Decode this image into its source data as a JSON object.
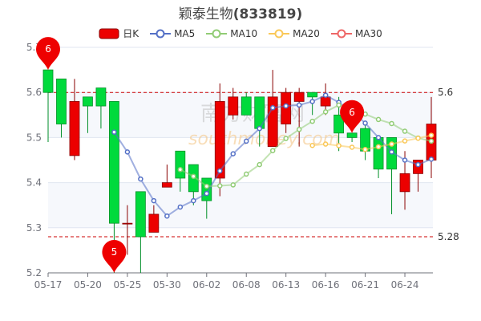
{
  "title": {
    "name": "颖泰生物",
    "code": "(833819)"
  },
  "legend": [
    {
      "label": "日K",
      "type": "candle",
      "color": "#ec0000"
    },
    {
      "label": "MA5",
      "type": "line",
      "color": "#5470c6"
    },
    {
      "label": "MA10",
      "type": "line",
      "color": "#91cc75"
    },
    {
      "label": "MA20",
      "type": "line",
      "color": "#fac858"
    },
    {
      "label": "MA30",
      "type": "line",
      "color": "#ee6666"
    }
  ],
  "watermark": "南方财富网 southmoney.com",
  "chart_data": {
    "type": "candlestick",
    "title": "颖泰生物(833819)",
    "up_color": "#ec0000",
    "down_color": "#00da3c",
    "ylim": [
      5.2,
      5.7
    ],
    "yticks": [
      "5.2",
      "5.3",
      "5.4",
      "5.5",
      "5.6",
      "5.7"
    ],
    "xtick_labels": [
      "05-17",
      "05-20",
      "05-25",
      "05-30",
      "06-02",
      "06-08",
      "06-13",
      "06-16",
      "06-21",
      "06-24"
    ],
    "xtick_every": 3,
    "candles": [
      [
        5.65,
        5.6,
        5.49,
        5.65
      ],
      [
        5.63,
        5.53,
        5.5,
        5.63
      ],
      [
        5.46,
        5.58,
        5.45,
        5.63
      ],
      [
        5.59,
        5.57,
        5.51,
        5.59
      ],
      [
        5.61,
        5.57,
        5.52,
        5.61
      ],
      [
        5.58,
        5.31,
        5.2,
        5.58
      ],
      [
        5.31,
        5.31,
        5.24,
        5.35
      ],
      [
        5.38,
        5.28,
        5.2,
        5.38
      ],
      [
        5.29,
        5.33,
        5.29,
        5.35
      ],
      [
        5.39,
        5.4,
        5.39,
        5.44
      ],
      [
        5.47,
        5.41,
        5.38,
        5.47
      ],
      [
        5.44,
        5.38,
        5.35,
        5.44
      ],
      [
        5.41,
        5.36,
        5.32,
        5.41
      ],
      [
        5.41,
        5.58,
        5.37,
        5.62
      ],
      [
        5.55,
        5.59,
        5.54,
        5.61
      ],
      [
        5.59,
        5.55,
        5.55,
        5.6
      ],
      [
        5.59,
        5.52,
        5.48,
        5.59
      ],
      [
        5.48,
        5.59,
        5.48,
        5.65
      ],
      [
        5.53,
        5.6,
        5.51,
        5.61
      ],
      [
        5.58,
        5.6,
        5.48,
        5.61
      ],
      [
        5.6,
        5.59,
        5.55,
        5.6
      ],
      [
        5.57,
        5.59,
        5.55,
        5.62
      ],
      [
        5.55,
        5.51,
        5.47,
        5.59
      ],
      [
        5.51,
        5.5,
        5.49,
        5.51
      ],
      [
        5.52,
        5.47,
        5.45,
        5.53
      ],
      [
        5.5,
        5.43,
        5.41,
        5.5
      ],
      [
        5.5,
        5.43,
        5.33,
        5.5
      ],
      [
        5.38,
        5.42,
        5.34,
        5.47
      ],
      [
        5.42,
        5.45,
        5.38,
        5.45
      ],
      [
        5.45,
        5.53,
        5.41,
        5.59
      ]
    ],
    "candle_format": [
      "open",
      "close",
      "low",
      "high"
    ],
    "moving_averages": [
      {
        "name": "MA5",
        "period": 5,
        "color": "#5470c6",
        "start_index": 5
      },
      {
        "name": "MA10",
        "period": 10,
        "color": "#91cc75",
        "start_index": 10
      },
      {
        "name": "MA20",
        "period": 20,
        "color": "#fac858",
        "start_index": 20
      }
    ],
    "mark_lines": [
      {
        "value": 5.6,
        "label": "5.6"
      },
      {
        "value": 5.28,
        "label": "5.28"
      }
    ],
    "mark_points": [
      {
        "label": "6",
        "index": 0,
        "value": 5.65
      },
      {
        "label": "5",
        "index": 5,
        "value": 5.2
      },
      {
        "label": "6",
        "index": 23,
        "value": 5.51
      }
    ]
  }
}
